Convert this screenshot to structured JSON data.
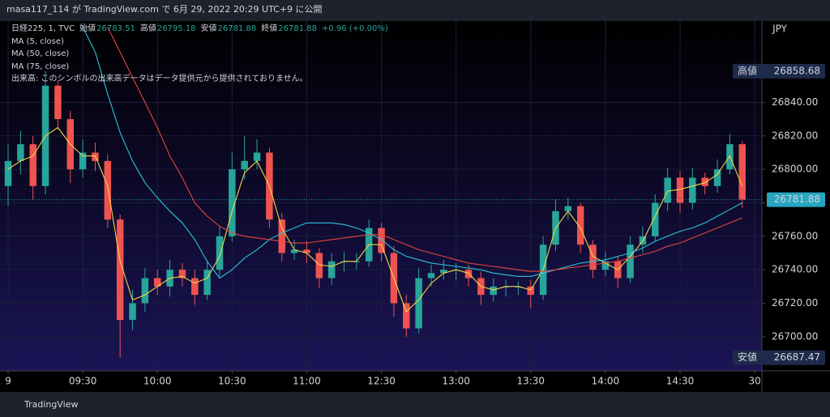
{
  "header": {
    "publish_text": "masa117_114 が TradingView.com で 6月 29, 2022 20:29 UTC+9 に公開"
  },
  "footer": {
    "brand": "TradingView"
  },
  "chart_data": {
    "type": "candlestick",
    "symbol": "日経225, 1, TVC",
    "ohlc_legend": [
      {
        "label": "始値",
        "value": 26783.51
      },
      {
        "label": "高値",
        "value": 26795.18
      },
      {
        "label": "安値",
        "value": 26781.88
      },
      {
        "label": "終値",
        "value": 26781.88
      }
    ],
    "change_text": "+0.96 (+0.00%)",
    "volume_note": "出来高: このシンボルの出来高データはデータ提供元から提供されておりません。",
    "currency": "JPY",
    "up_color": "#26a69a",
    "down_color": "#ef5350",
    "x": [
      0,
      5,
      10,
      15,
      20,
      25,
      30,
      35,
      40,
      45,
      50,
      55,
      60,
      65,
      70,
      75,
      80,
      85,
      90,
      95,
      100,
      105,
      110,
      115,
      120,
      125,
      130,
      135,
      140,
      145,
      150,
      155,
      160,
      165,
      170,
      175,
      180,
      185,
      190,
      195,
      200,
      205,
      210,
      215,
      220,
      225,
      230,
      235,
      240,
      245,
      250,
      255,
      260,
      265,
      270,
      275,
      280,
      285,
      290,
      295
    ],
    "open": [
      26790,
      26805,
      26815,
      26790,
      26850,
      26830,
      26800,
      26810,
      26805,
      26770,
      26710,
      26720,
      26735,
      26730,
      26740,
      26735,
      26725,
      26740,
      26760,
      26800,
      26805,
      26810,
      26770,
      26750,
      26752,
      26750,
      26735,
      26745,
      26745,
      26745,
      26765,
      26750,
      26720,
      26705,
      26735,
      26738,
      26740,
      26740,
      26735,
      26725,
      26730,
      26730,
      26730,
      26725,
      26755,
      26775,
      26778,
      26755,
      26740,
      26745,
      26735,
      26755,
      26760,
      26780,
      26795,
      26780,
      26795,
      26790,
      26800,
      26815
    ],
    "high": [
      26815,
      26823,
      26820,
      26858.68,
      26853,
      26835,
      26818,
      26816,
      26809,
      26773,
      26728,
      26741,
      26740,
      26746,
      26744,
      26740,
      26745,
      26766,
      26810,
      26820,
      26818,
      26813,
      26774,
      26758,
      26757,
      26753,
      26750,
      26751,
      26750,
      26770,
      26768,
      26754,
      26725,
      26741,
      26743,
      26746,
      26744,
      26743,
      26739,
      26735,
      26734,
      26733,
      26734,
      26760,
      26782,
      26783,
      26780,
      26758,
      26751,
      26748,
      26760,
      26766,
      26785,
      26801,
      26799,
      26801,
      26798,
      26806,
      26821,
      26817
    ],
    "low": [
      26778,
      26797,
      26782,
      26785,
      26824,
      26792,
      26795,
      26799,
      26765,
      26687.47,
      26704,
      26715,
      26725,
      26724,
      26730,
      26719,
      26722,
      26736,
      26757,
      26794,
      26800,
      26765,
      26745,
      26746,
      26744,
      26729,
      26731,
      26739,
      26740,
      26742,
      26745,
      26712,
      26700,
      26702,
      26730,
      26734,
      26734,
      26730,
      26719,
      26721,
      26724,
      26725,
      26717,
      26722,
      26751,
      26770,
      26750,
      26735,
      26736,
      26729,
      26732,
      26750,
      26757,
      26775,
      26774,
      26776,
      26785,
      26786,
      26797,
      26777
    ],
    "close": [
      26805,
      26815,
      26790,
      26850,
      26830,
      26800,
      26810,
      26805,
      26770,
      26710,
      26720,
      26735,
      26730,
      26740,
      26735,
      26725,
      26740,
      26760,
      26800,
      26805,
      26810,
      26770,
      26750,
      26752,
      26750,
      26735,
      26745,
      26745,
      26745,
      26765,
      26750,
      26720,
      26705,
      26735,
      26738,
      26740,
      26740,
      26735,
      26725,
      26730,
      26730,
      26730,
      26725,
      26755,
      26775,
      26778,
      26755,
      26740,
      26745,
      26735,
      26755,
      26760,
      26780,
      26795,
      26780,
      26795,
      26790,
      26800,
      26815,
      26781.88
    ],
    "series": [
      {
        "name": "MA (5, close)",
        "color": "#f5d547",
        "values": [
          26800,
          26805,
          26808,
          26820,
          26825,
          26815,
          26808,
          26808,
          26790,
          26745,
          26722,
          26725,
          26730,
          26735,
          26736,
          26732,
          26735,
          26748,
          26775,
          26798,
          26805,
          26790,
          26765,
          26752,
          26750,
          26743,
          26742,
          26745,
          26745,
          26755,
          26755,
          26735,
          26715,
          26722,
          26732,
          26738,
          26740,
          26738,
          26730,
          26728,
          26730,
          26730,
          26728,
          26740,
          26765,
          26775,
          26765,
          26748,
          26744,
          26740,
          26748,
          26757,
          26772,
          26787,
          26788,
          26790,
          26792,
          26797,
          26808,
          26790
        ]
      },
      {
        "name": "MA (50, close)",
        "color": "#26c6da",
        "values": [
          null,
          null,
          null,
          null,
          null,
          null,
          26885,
          26870,
          26845,
          26822,
          26805,
          26792,
          26783,
          26775,
          26768,
          26758,
          26745,
          26735,
          26740,
          26747,
          26752,
          26758,
          26762,
          26765,
          26768,
          26768,
          26768,
          26767,
          26765,
          26762,
          26758,
          26752,
          26748,
          26746,
          26744,
          26743,
          26742,
          26741,
          26740,
          26738,
          26737,
          26736,
          26736,
          26738,
          26740,
          26742,
          26744,
          26745,
          26746,
          26748,
          26750,
          26753,
          26757,
          26760,
          26763,
          26765,
          26768,
          26772,
          26776,
          26780
        ]
      },
      {
        "name": "MA (75, close)",
        "color": "#e5453a",
        "values": [
          null,
          null,
          null,
          null,
          null,
          null,
          null,
          null,
          26885,
          26870,
          26855,
          26840,
          26825,
          26808,
          26795,
          26780,
          26772,
          26766,
          26762,
          26760,
          26759,
          26758,
          26757,
          26756,
          26756,
          26757,
          26758,
          26759,
          26760,
          26761,
          26761,
          26758,
          26755,
          26752,
          26750,
          26748,
          26746,
          26744,
          26743,
          26742,
          26741,
          26740,
          26739,
          26739,
          26740,
          26741,
          26742,
          26743,
          26744,
          26745,
          26747,
          26749,
          26751,
          26754,
          26756,
          26759,
          26762,
          26765,
          26768,
          26771
        ]
      }
    ],
    "xlim": [
      -3.26,
      302.9
    ],
    "xticks": [
      {
        "value": 0,
        "label": "9"
      },
      {
        "value": 30,
        "label": "09:30"
      },
      {
        "value": 60,
        "label": "10:00"
      },
      {
        "value": 90,
        "label": "10:30"
      },
      {
        "value": 120,
        "label": "11:00"
      },
      {
        "value": 150,
        "label": "12:30"
      },
      {
        "value": 180,
        "label": "13:00"
      },
      {
        "value": 210,
        "label": "13:30"
      },
      {
        "value": 240,
        "label": "14:00"
      },
      {
        "value": 270,
        "label": "14:30"
      },
      {
        "value": 300,
        "label": "30"
      }
    ],
    "ylim": [
      26679.6,
      26888.6
    ],
    "yticks": [
      {
        "value": 26700,
        "label": "26700.00"
      },
      {
        "value": 26720,
        "label": "26720.00"
      },
      {
        "value": 26740,
        "label": "26740.00"
      },
      {
        "value": 26760,
        "label": "26760.00"
      },
      {
        "value": 26780,
        "label": "26780.00"
      },
      {
        "value": 26800,
        "label": "26800.00"
      },
      {
        "value": 26820,
        "label": "26820.00"
      },
      {
        "value": 26840,
        "label": "26840.00"
      }
    ],
    "grid": true,
    "price_badges": [
      {
        "label": "高値",
        "value": 26858.68
      },
      {
        "label": "安値",
        "value": 26687.47
      }
    ],
    "last_price": 26781.88
  }
}
